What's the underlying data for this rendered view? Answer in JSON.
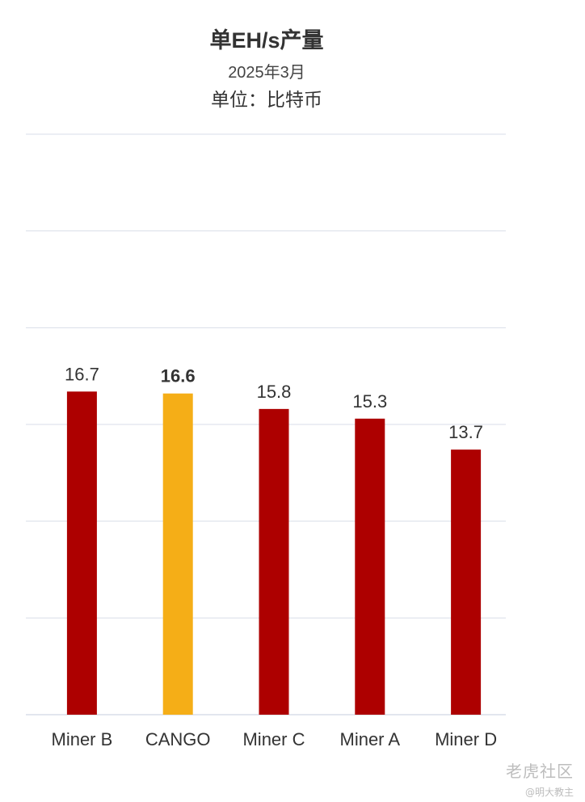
{
  "chart_data": {
    "type": "bar",
    "title": "单EH/s产量",
    "subtitle": "2025年3月",
    "unit": "单位：比特币",
    "categories": [
      "Miner B",
      "CANGO",
      "Miner C",
      "Miner A",
      "Miner D"
    ],
    "values": [
      16.7,
      16.6,
      15.8,
      15.3,
      13.7
    ],
    "data_labels": [
      "16.7",
      "16.6",
      "15.8",
      "15.3",
      "13.7"
    ],
    "highlight_index": 1,
    "colors": {
      "default": "#AD0000",
      "highlight": "#F5AE17",
      "grid": "#D9DEE8",
      "label": "#333333"
    },
    "ylim": [
      0,
      30
    ],
    "grid": true,
    "legend": "none"
  },
  "watermark": {
    "main": "老虎社区",
    "sub": "@明大教主"
  }
}
